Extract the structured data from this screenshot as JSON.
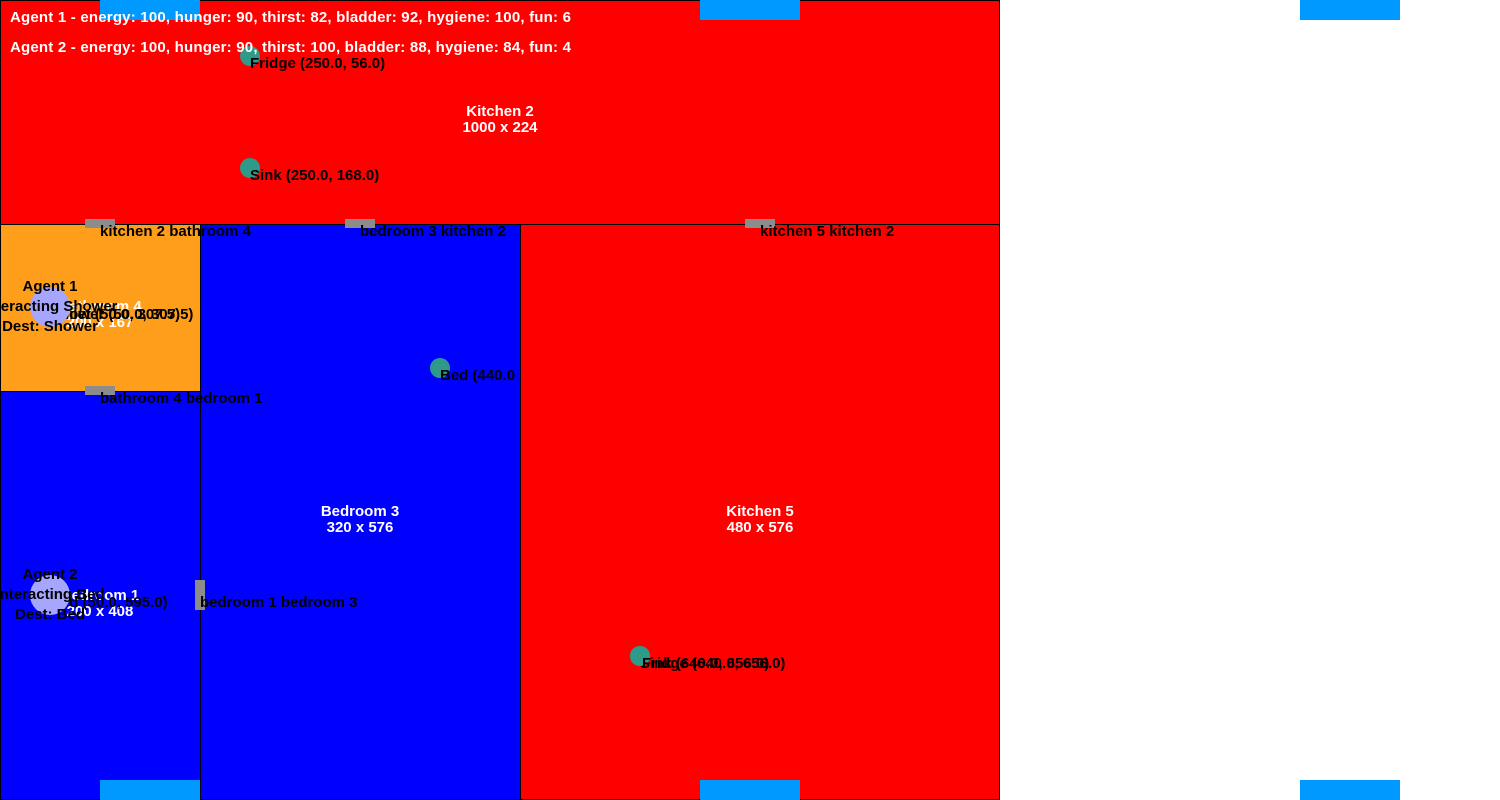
{
  "colors": {
    "kitchen": "#ff0000",
    "bedroom": "#0000ff",
    "bathroom": "#ff9e1a",
    "door": "#8c8c8c",
    "object": "#2e9a8a",
    "agent": "#a6a6ff",
    "window_marker": "#0099ff"
  },
  "status": {
    "agent1": "Agent 1 - energy: 100, hunger: 90, thirst: 82, bladder: 92, hygiene: 100, fun: 6",
    "agent2": "Agent 2 - energy: 100, hunger: 90, thirst: 100, bladder: 88, hygiene: 84, fun: 4"
  },
  "rooms": {
    "kitchen2": {
      "name": "Kitchen 2",
      "size": "1000 x 224"
    },
    "bathroom4": {
      "name": "Bathroom 4",
      "size": "200 x 167"
    },
    "bedroom3": {
      "name": "Bedroom 3",
      "size": "320 x 576"
    },
    "kitchen5": {
      "name": "Kitchen 5",
      "size": "480 x 576"
    },
    "bedroom1": {
      "name": "Bedroom 1",
      "size": "200 x 408"
    }
  },
  "doors": {
    "kitchen2_bathroom4": "kitchen 2 bathroom 4",
    "bedroom3_kitchen2": "bedroom 3 kitchen 2",
    "kitchen5_kitchen2": "kitchen 5 kitchen 2",
    "bathroom4_bedroom1": "bathroom 4 bedroom 1",
    "bedroom1_bedroom3": "bedroom 1 bedroom 3"
  },
  "objects": {
    "fridge_k2": "Fridge (250.0, 56.0)",
    "sink_k2": "Sink (250.0, 168.0)",
    "shower_b4": "Shower (50.0, 307.5)",
    "toilet_b4": "Toilet (50.0, 307.5)",
    "bed_b3": "Bed (440.0",
    "bed_b1": "Bed (50.0, 595.0)",
    "sink_k5": "Sink (640.0, 656.0)",
    "fridge_k5": "Fridge (640.0, 656.0)"
  },
  "agents": {
    "agent1": {
      "name": "Agent 1",
      "state": "Interacting Shower",
      "dest": "Dest: Shower"
    },
    "agent2": {
      "name": "Agent 2",
      "state": "Interacting Bed",
      "dest": "Dest: Bed"
    }
  }
}
